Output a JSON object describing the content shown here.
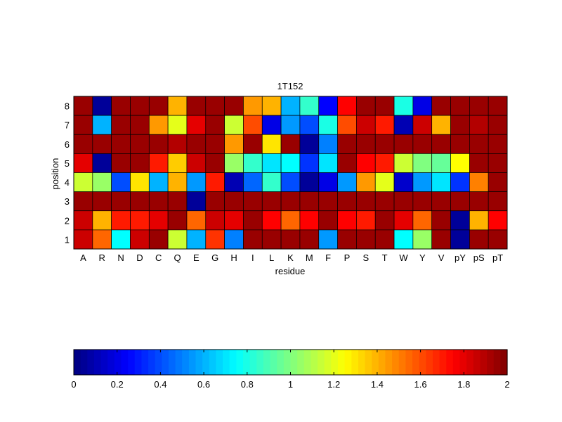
{
  "chart_data": {
    "type": "heatmap",
    "title": "1T152",
    "xlabel": "residue",
    "ylabel": "position",
    "x_categories": [
      "A",
      "R",
      "N",
      "D",
      "C",
      "Q",
      "E",
      "G",
      "H",
      "I",
      "L",
      "K",
      "M",
      "F",
      "P",
      "S",
      "T",
      "W",
      "Y",
      "V",
      "pY",
      "pS",
      "pT"
    ],
    "y_categories": [
      "8",
      "7",
      "6",
      "5",
      "4",
      "3",
      "2",
      "1"
    ],
    "values": [
      [
        1.95,
        0.05,
        1.95,
        1.95,
        1.95,
        1.4,
        1.95,
        1.95,
        1.95,
        1.45,
        1.4,
        0.6,
        0.85,
        0.25,
        1.75,
        1.95,
        1.95,
        0.8,
        0.2,
        1.95,
        1.95,
        1.95,
        1.95
      ],
      [
        1.95,
        0.6,
        1.95,
        1.95,
        1.45,
        1.2,
        1.8,
        1.95,
        1.15,
        1.6,
        0.2,
        0.55,
        0.4,
        0.8,
        1.6,
        1.85,
        1.7,
        0.1,
        1.85,
        1.4,
        1.95,
        1.9,
        1.95
      ],
      [
        1.95,
        1.95,
        1.95,
        1.95,
        1.95,
        1.9,
        1.95,
        1.95,
        1.45,
        1.95,
        1.3,
        1.95,
        0.05,
        0.5,
        1.95,
        1.95,
        1.95,
        1.95,
        1.95,
        1.95,
        1.95,
        1.95,
        1.95
      ],
      [
        1.8,
        0.05,
        1.95,
        1.95,
        1.7,
        1.35,
        1.85,
        1.95,
        1.05,
        0.85,
        0.7,
        0.75,
        0.35,
        0.7,
        1.95,
        1.75,
        1.7,
        1.15,
        1.0,
        0.95,
        1.25,
        1.95,
        1.95
      ],
      [
        1.15,
        1.05,
        0.4,
        1.3,
        0.6,
        1.4,
        0.55,
        1.7,
        0.1,
        0.45,
        0.85,
        0.4,
        0.05,
        0.2,
        0.55,
        1.45,
        1.2,
        0.15,
        0.55,
        0.7,
        0.35,
        1.5,
        1.95
      ],
      [
        1.95,
        1.95,
        1.95,
        1.95,
        1.95,
        1.95,
        0.05,
        1.95,
        1.95,
        1.95,
        1.95,
        1.95,
        1.95,
        1.95,
        1.95,
        1.95,
        1.95,
        1.95,
        1.95,
        1.95,
        1.95,
        1.95,
        1.95
      ],
      [
        1.85,
        1.4,
        1.7,
        1.7,
        1.8,
        1.95,
        1.55,
        1.85,
        1.8,
        1.95,
        1.75,
        1.55,
        1.75,
        1.95,
        1.75,
        1.7,
        1.95,
        1.8,
        1.55,
        1.95,
        0.05,
        1.4,
        1.75
      ],
      [
        1.85,
        1.55,
        0.75,
        1.85,
        1.95,
        1.15,
        0.6,
        1.65,
        0.5,
        1.95,
        1.95,
        1.95,
        1.95,
        0.55,
        1.95,
        1.95,
        1.95,
        0.75,
        1.05,
        1.95,
        0.05,
        1.95,
        1.95
      ]
    ],
    "colorbar": {
      "min": 0,
      "max": 2,
      "ticks": [
        "0",
        "0.2",
        "0.4",
        "0.6",
        "0.8",
        "1",
        "1.2",
        "1.4",
        "1.6",
        "1.8",
        "2"
      ],
      "colormap": "jet"
    }
  }
}
